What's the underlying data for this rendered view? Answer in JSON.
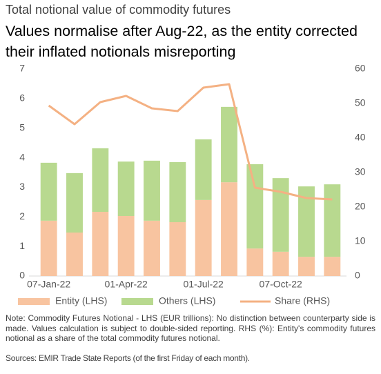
{
  "chart_data": {
    "type": "bar",
    "title": "Total notional value of commodity futures",
    "subtitle": "Values normalise after Aug-22, as the entity corrected their inflated notionals misreporting",
    "categories": [
      "07-Jan-22",
      null,
      null,
      "01-Apr-22",
      null,
      null,
      "01-Jul-22",
      null,
      null,
      "07-Oct-22",
      null,
      null
    ],
    "series": [
      {
        "name": "Entity (LHS)",
        "color": "#f8c4a0",
        "values": [
          1.87,
          1.47,
          2.17,
          2.03,
          1.87,
          1.82,
          2.57,
          3.17,
          0.93,
          0.82,
          0.65,
          0.65
        ]
      },
      {
        "name": "Others (LHS)",
        "color": "#b8d98f",
        "values": [
          1.96,
          2.01,
          2.15,
          1.84,
          2.03,
          2.03,
          2.05,
          2.55,
          2.85,
          2.49,
          2.38,
          2.45
        ]
      },
      {
        "name": "Share (RHS)",
        "color": "#f4b183",
        "type": "line",
        "axis": "y2",
        "values": [
          49.4,
          44,
          50.4,
          52.2,
          48.6,
          47.8,
          54.6,
          55.6,
          25.6,
          24.4,
          22.6,
          22.2
        ]
      }
    ],
    "stacked": true,
    "ylim": [
      0,
      7
    ],
    "yticks": [
      0,
      1,
      2,
      3,
      4,
      5,
      6,
      7
    ],
    "y2lim": [
      0,
      60
    ],
    "y2ticks": [
      0,
      10,
      20,
      30,
      40,
      50,
      60
    ],
    "grid": false,
    "legend": "bottom",
    "note": "Note: Commodity Futures Notional - LHS (EUR trillions): No distinction between counterparty side is made. Values calculation is subject to double-sided reporting. RHS (%): Entity's commodity futures notional as a share of the total commodity futures notional.",
    "sources": "Sources: EMIR Trade State Reports (of the first Friday of each month)."
  }
}
